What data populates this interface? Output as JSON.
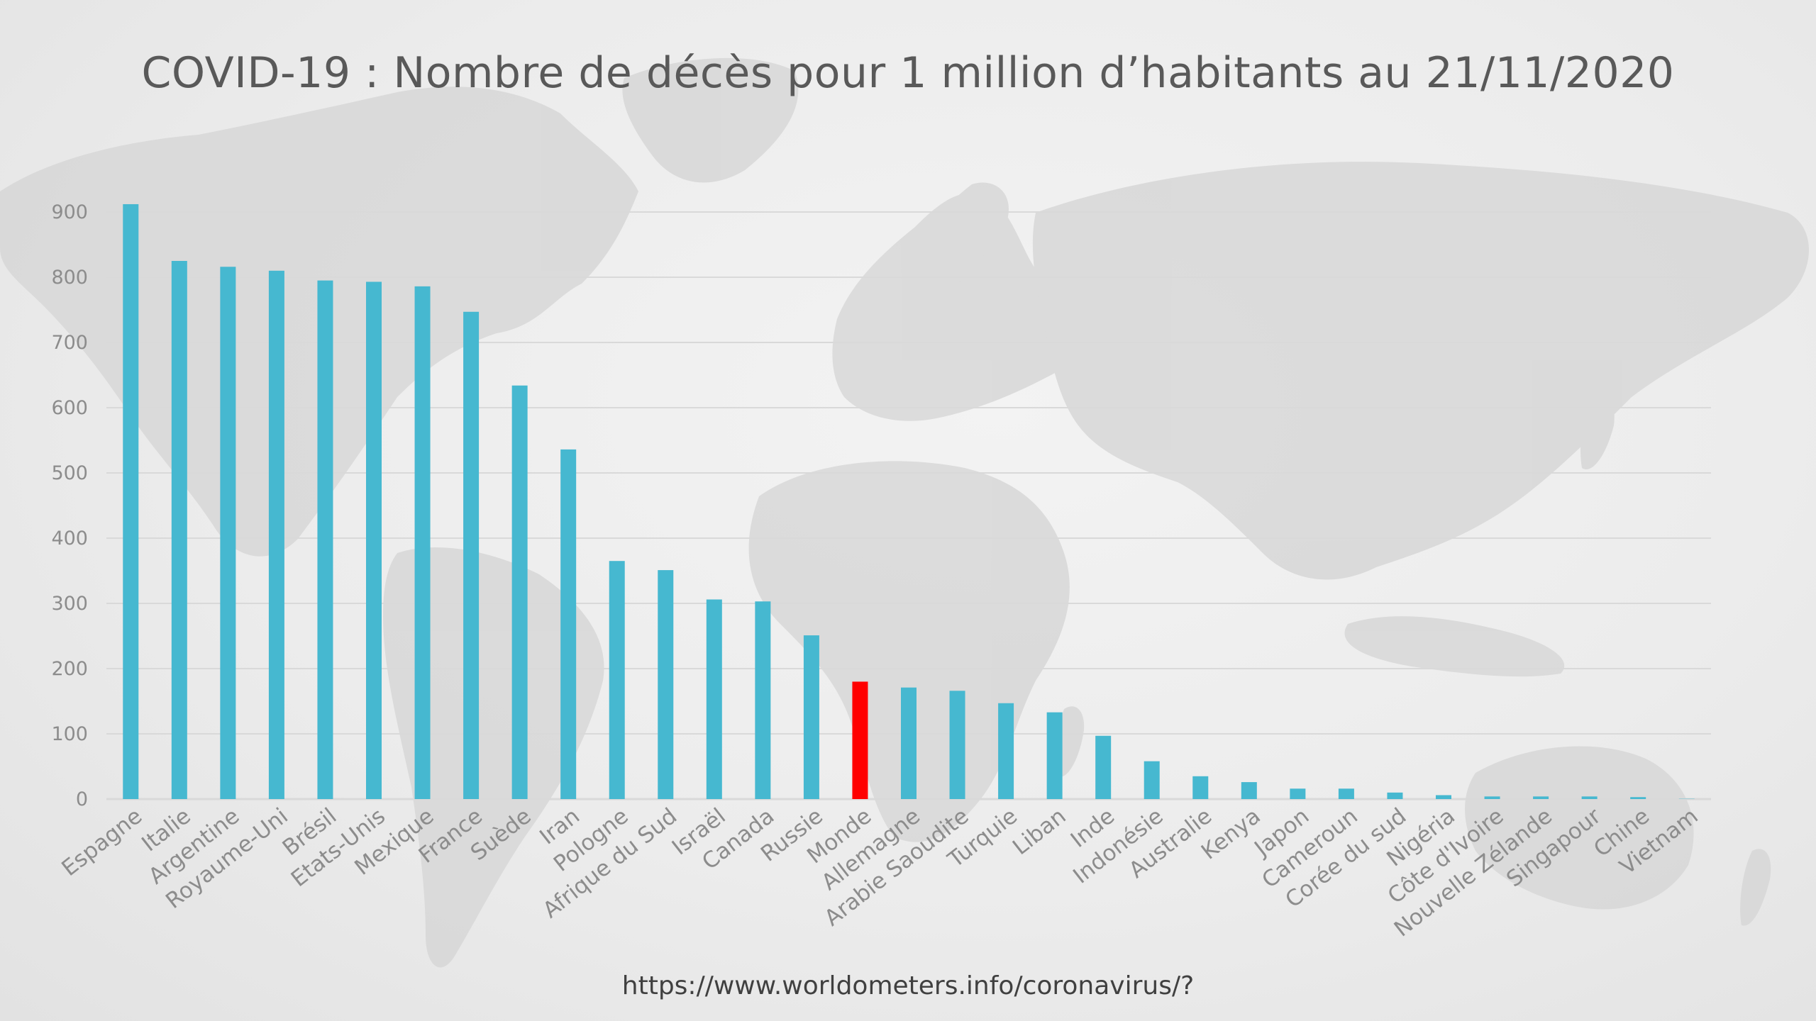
{
  "title": "COVID-19 : Nombre de décès pour 1 million d’habitants au 21/11/2020",
  "source": "https://www.worldometers.info/coronavirus/?",
  "colors": {
    "bar": "#46b8d0",
    "highlight": "#ff0000",
    "grid": "#d9d9d9"
  },
  "chart_data": {
    "type": "bar",
    "title": "COVID-19 : Nombre de décès pour 1 million d’habitants au 21/11/2020",
    "xlabel": "",
    "ylabel": "",
    "ylim": [
      0,
      900
    ],
    "yticks": [
      0,
      100,
      200,
      300,
      400,
      500,
      600,
      700,
      800,
      900
    ],
    "grid": true,
    "legend": "none",
    "highlight_category": "Monde",
    "categories": [
      "Espagne",
      "Italie",
      "Argentine",
      "Royaume-Uni",
      "Brésil",
      "Etats-Unis",
      "Mexique",
      "France",
      "Suède",
      "Iran",
      "Pologne",
      "Afrique du Sud",
      "Israël",
      "Canada",
      "Russie",
      "Monde",
      "Allemagne",
      "Arabie Saoudite",
      "Turquie",
      "Liban",
      "Inde",
      "Indonésie",
      "Australie",
      "Kenya",
      "Japon",
      "Cameroun",
      "Corée du sud",
      "Nigéria",
      "Côte d'Ivoire",
      "Nouvelle Zélande",
      "Singapour",
      "Chine",
      "Vietnam"
    ],
    "values": [
      912,
      825,
      816,
      810,
      795,
      793,
      786,
      747,
      634,
      536,
      365,
      351,
      306,
      303,
      251,
      180,
      171,
      166,
      147,
      133,
      97,
      58,
      35,
      26,
      16,
      16,
      10,
      6,
      4,
      4,
      4,
      3,
      0.4
    ]
  }
}
